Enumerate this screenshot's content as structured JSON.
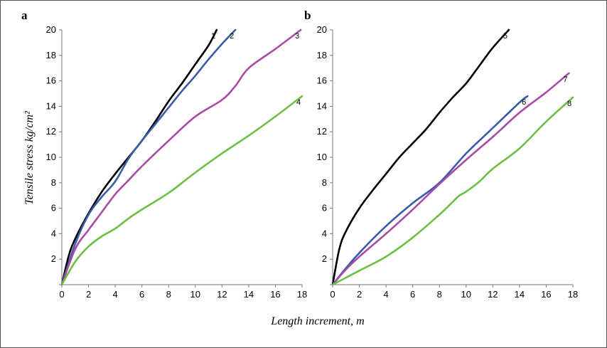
{
  "colors": {
    "black": "#000000",
    "blue": "#3a5ba8",
    "purple": "#a64ca6",
    "green": "#6cbf45"
  },
  "figure": {
    "ylabel": "Tensile stress kg/cm²",
    "xlabel": "Length increment, m"
  },
  "chart_data": [
    {
      "type": "line",
      "panel_label": "a",
      "xlim": [
        0,
        18
      ],
      "ylim": [
        0,
        20
      ],
      "x_ticks": [
        "0",
        "2",
        "4",
        "6",
        "8",
        "10",
        "12",
        "14",
        "16",
        "18"
      ],
      "y_ticks": [
        "",
        "2",
        "4",
        "6",
        "8",
        "10",
        "12",
        "14",
        "16",
        "18",
        "20"
      ],
      "grid": false,
      "series": [
        {
          "name": "1",
          "color": "#000000",
          "points": [
            [
              0,
              0
            ],
            [
              0.5,
              2.2
            ],
            [
              1,
              3.6
            ],
            [
              2,
              5.6
            ],
            [
              3,
              7.3
            ],
            [
              4,
              8.7
            ],
            [
              5,
              10
            ],
            [
              6,
              11.3
            ],
            [
              7,
              12.8
            ],
            [
              8,
              14.4
            ],
            [
              9,
              15.8
            ],
            [
              10,
              17.3
            ],
            [
              11,
              18.8
            ],
            [
              11.6,
              20
            ]
          ]
        },
        {
          "name": "2",
          "color": "#3a5ba8",
          "points": [
            [
              0,
              0
            ],
            [
              1,
              3.2
            ],
            [
              2,
              5.5
            ],
            [
              3,
              6.9
            ],
            [
              4,
              8.1
            ],
            [
              5,
              9.9
            ],
            [
              6,
              11.3
            ],
            [
              7,
              12.6
            ],
            [
              8,
              13.9
            ],
            [
              9,
              15.2
            ],
            [
              10,
              16.4
            ],
            [
              11,
              17.7
            ],
            [
              12,
              18.9
            ],
            [
              13,
              20
            ]
          ]
        },
        {
          "name": "3",
          "color": "#a64ca6",
          "points": [
            [
              0,
              0
            ],
            [
              1,
              2.8
            ],
            [
              2,
              4.3
            ],
            [
              3,
              5.7
            ],
            [
              4,
              7.1
            ],
            [
              5,
              8.2
            ],
            [
              6,
              9.3
            ],
            [
              8,
              11.3
            ],
            [
              10,
              13.2
            ],
            [
              12,
              14.5
            ],
            [
              13,
              15.6
            ],
            [
              14,
              17
            ],
            [
              16,
              18.5
            ],
            [
              17.9,
              20
            ]
          ]
        },
        {
          "name": "4",
          "color": "#6cbf45",
          "points": [
            [
              0,
              0
            ],
            [
              1,
              1.8
            ],
            [
              2,
              3
            ],
            [
              3,
              3.8
            ],
            [
              4,
              4.4
            ],
            [
              5,
              5.2
            ],
            [
              6,
              5.9
            ],
            [
              8,
              7.2
            ],
            [
              10,
              8.8
            ],
            [
              12,
              10.3
            ],
            [
              14,
              11.7
            ],
            [
              16,
              13.2
            ],
            [
              18,
              14.8
            ]
          ]
        }
      ]
    },
    {
      "type": "line",
      "panel_label": "b",
      "xlim": [
        0,
        18
      ],
      "ylim": [
        0,
        20
      ],
      "x_ticks": [
        "0",
        "2",
        "4",
        "6",
        "8",
        "10",
        "12",
        "14",
        "16",
        "18"
      ],
      "y_ticks": [
        "",
        "2",
        "4",
        "6",
        "8",
        "10",
        "12",
        "14",
        "16",
        "18",
        "20"
      ],
      "grid": false,
      "series": [
        {
          "name": "5",
          "color": "#000000",
          "points": [
            [
              0,
              0
            ],
            [
              0.5,
              2.8
            ],
            [
              1,
              4.2
            ],
            [
              2,
              6
            ],
            [
              3,
              7.4
            ],
            [
              4,
              8.7
            ],
            [
              5,
              10
            ],
            [
              6,
              11.1
            ],
            [
              7,
              12.2
            ],
            [
              8,
              13.5
            ],
            [
              9,
              14.7
            ],
            [
              10,
              15.8
            ],
            [
              11,
              17.2
            ],
            [
              12,
              18.6
            ],
            [
              13.2,
              20
            ]
          ]
        },
        {
          "name": "6",
          "color": "#3a5ba8",
          "points": [
            [
              0,
              0
            ],
            [
              1,
              1.3
            ],
            [
              2,
              2.5
            ],
            [
              4,
              4.6
            ],
            [
              6,
              6.4
            ],
            [
              8,
              8
            ],
            [
              10,
              10.3
            ],
            [
              12,
              12.3
            ],
            [
              14,
              14.3
            ],
            [
              14.6,
              14.8
            ]
          ]
        },
        {
          "name": "7",
          "color": "#a64ca6",
          "points": [
            [
              0,
              0
            ],
            [
              1,
              1.2
            ],
            [
              2,
              2.2
            ],
            [
              4,
              4
            ],
            [
              6,
              5.9
            ],
            [
              8,
              7.9
            ],
            [
              10,
              9.8
            ],
            [
              12,
              11.6
            ],
            [
              14,
              13.5
            ],
            [
              16,
              15.1
            ],
            [
              17.7,
              16.6
            ]
          ]
        },
        {
          "name": "8",
          "color": "#6cbf45",
          "points": [
            [
              0,
              0
            ],
            [
              2,
              1.1
            ],
            [
              4,
              2.2
            ],
            [
              6,
              3.7
            ],
            [
              8,
              5.5
            ],
            [
              9,
              6.5
            ],
            [
              9.5,
              7
            ],
            [
              10,
              7.3
            ],
            [
              11,
              8.1
            ],
            [
              12,
              9.1
            ],
            [
              14,
              10.7
            ],
            [
              16,
              12.8
            ],
            [
              18,
              14.7
            ]
          ]
        }
      ]
    }
  ]
}
